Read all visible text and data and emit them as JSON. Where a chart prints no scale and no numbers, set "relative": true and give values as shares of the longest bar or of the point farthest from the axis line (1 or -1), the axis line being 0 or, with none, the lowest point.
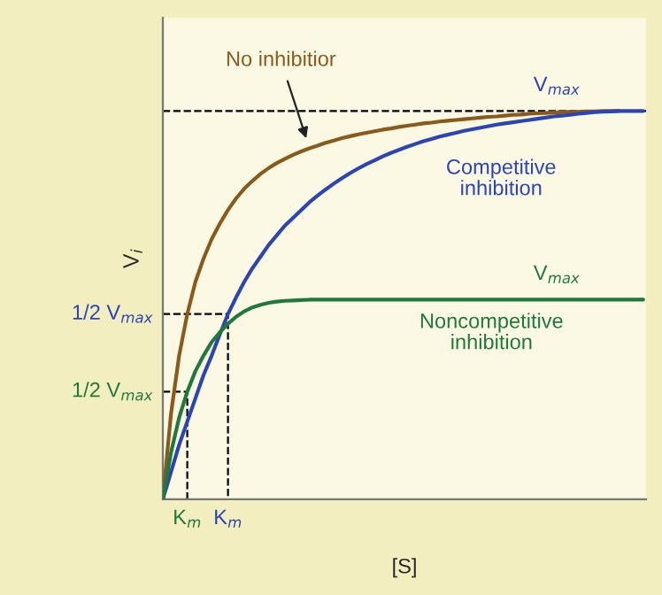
{
  "chart_data": {
    "type": "line",
    "relative": true,
    "xlabel": "[S]",
    "ylabel": "V$_{i}$",
    "categories": [
      null,
      null,
      null,
      "K$_{m}$",
      null,
      null,
      null,
      null,
      "K$_{m}$",
      null,
      null,
      null,
      null,
      null,
      null,
      null,
      null,
      null,
      null,
      null,
      null,
      null,
      null,
      null,
      null,
      null,
      null,
      null,
      null,
      null,
      null,
      null,
      null,
      null,
      null,
      null,
      null,
      null,
      null,
      null,
      null,
      null,
      null,
      null,
      null,
      null,
      null,
      null,
      null,
      null,
      null,
      null,
      null,
      null,
      null,
      null,
      null,
      null,
      null,
      null
    ],
    "series": [
      {
        "name": "No inhibitior",
        "color": "#8b5a1b",
        "values": [
          0,
          0.22,
          0.37,
          0.477,
          0.56,
          0.62,
          0.67,
          0.71,
          0.745,
          0.775,
          0.8,
          0.82,
          0.838,
          0.853,
          0.866,
          0.877,
          0.887,
          0.896,
          0.904,
          0.911,
          0.918,
          0.924,
          0.93,
          0.935,
          0.94,
          0.944,
          0.948,
          0.952,
          0.955,
          0.959,
          0.962,
          0.965,
          0.968,
          0.97,
          0.973,
          0.975,
          0.977,
          0.979,
          0.981,
          0.983,
          0.985,
          0.986,
          0.988,
          0.99,
          0.991,
          0.993,
          0.994,
          0.995,
          0.996,
          0.997,
          0.998,
          0.998,
          0.999,
          0.999,
          1,
          1,
          1,
          null,
          null,
          null
        ]
      },
      {
        "name": "Competitive inhibition",
        "color": "#2b45b5",
        "values": [
          0,
          0.07,
          0.14,
          0.2,
          0.26,
          0.32,
          0.37,
          0.425,
          0.477,
          0.52,
          0.56,
          0.595,
          0.625,
          0.655,
          0.68,
          0.705,
          0.725,
          0.745,
          0.765,
          0.782,
          0.798,
          0.813,
          0.827,
          0.84,
          0.852,
          0.863,
          0.873,
          0.883,
          0.892,
          0.9,
          0.908,
          0.915,
          0.922,
          0.928,
          0.934,
          0.939,
          0.944,
          0.949,
          0.953,
          0.957,
          0.961,
          0.965,
          0.968,
          0.971,
          0.974,
          0.977,
          0.98,
          0.983,
          0.986,
          0.988,
          0.99,
          0.993,
          0.995,
          0.997,
          0.998,
          0.999,
          1,
          1,
          1,
          1
        ]
      },
      {
        "name": "Noncompetitive inhibition",
        "color": "#1f7a3a",
        "values": [
          0,
          0.12,
          0.21,
          0.277,
          0.33,
          0.37,
          0.405,
          0.43,
          0.452,
          0.47,
          0.484,
          0.494,
          0.501,
          0.506,
          0.509,
          0.511,
          0.512,
          0.513,
          0.514,
          0.514,
          0.514,
          0.514,
          0.514,
          0.514,
          0.514,
          0.514,
          0.514,
          0.514,
          0.514,
          0.514,
          0.514,
          0.514,
          0.514,
          0.514,
          0.514,
          0.514,
          0.514,
          0.514,
          0.514,
          0.514,
          0.514,
          0.514,
          0.514,
          0.514,
          0.514,
          0.514,
          0.514,
          0.514,
          0.514,
          0.514,
          0.514,
          0.514,
          0.514,
          0.514,
          0.514,
          0.514,
          0.514,
          0.514,
          0.514,
          0.514
        ]
      }
    ],
    "ref_lines": [
      {
        "axis": "y",
        "value": 1,
        "color": "#000000",
        "line_style": "dashed"
      },
      {
        "axis": "y",
        "value": 0.477,
        "label": "1/2 V$_{max}$",
        "color": "#000000",
        "line_style": "dashed"
      },
      {
        "axis": "y",
        "value": 0.277,
        "label": "1/2 V$_{max}$",
        "color": "#000000",
        "line_style": "dashed"
      }
    ],
    "annotations": [
      {
        "text": "V$_{max}$",
        "y": 1
      },
      {
        "text": "V$_{max}$",
        "y": 0.514
      }
    ],
    "line_style": "solid",
    "marker": "none",
    "grid": false,
    "legend": false
  }
}
